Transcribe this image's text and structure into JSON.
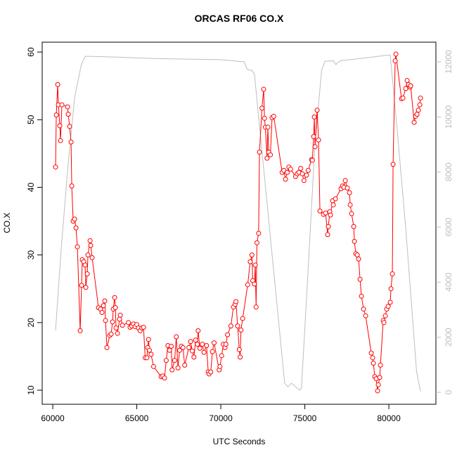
{
  "chart_data": {
    "type": "line",
    "title": "ORCAS RF06 CO.X",
    "x_label": "UTC Seconds",
    "y_label": "CO.X",
    "xlim": [
      59370,
      82800
    ],
    "ylim": [
      7.92,
      61.46
    ],
    "y2lim": [
      -434,
      12715
    ],
    "xticks": [
      60000,
      65000,
      70000,
      75000,
      80000
    ],
    "yticks": [
      10,
      20,
      30,
      40,
      50,
      60
    ],
    "y2ticks": [
      0,
      2000,
      4000,
      6000,
      8000,
      10000,
      12000
    ],
    "y2tick_color": "#bebebe",
    "series": [
      {
        "color": "#ff0000",
        "marker": "circle",
        "axis": "y",
        "x": [
          60167,
          60209,
          60293,
          60335,
          60418,
          60460,
          60544,
          60879,
          60920,
          61004,
          61088,
          61130,
          61213,
          61297,
          61381,
          61464,
          61632,
          61715,
          61757,
          61841,
          61925,
          61966,
          62050,
          62092,
          62218,
          62259,
          62343,
          62720,
          62845,
          62929,
          63012,
          63096,
          63138,
          63222,
          63389,
          63473,
          63556,
          63598,
          63682,
          63724,
          63766,
          63849,
          63975,
          64017,
          64142,
          64500,
          64600,
          64700,
          64800,
          64900,
          65000,
          65100,
          65200,
          65300,
          65400,
          65500,
          65600,
          65650,
          65700,
          65750,
          65850,
          66000,
          66450,
          66550,
          66650,
          66750,
          66850,
          66950,
          67050,
          67100,
          67250,
          67350,
          67450,
          67550,
          67650,
          67750,
          67850,
          68100,
          68200,
          68300,
          68400,
          68500,
          68600,
          68650,
          68750,
          68900,
          69000,
          69150,
          69250,
          69300,
          69400,
          69500,
          69600,
          69900,
          69950,
          70050,
          70150,
          70250,
          70300,
          70400,
          70600,
          70750,
          70850,
          70900,
          71000,
          71100,
          71150,
          71200,
          71300,
          71600,
          71750,
          71850,
          71900,
          72000,
          72050,
          72100,
          72150,
          72250,
          72300,
          72450,
          72550,
          72600,
          72650,
          72750,
          72800,
          72850,
          72950,
          73050,
          73150,
          73650,
          73750,
          73850,
          73950,
          74050,
          74150,
          74450,
          74550,
          74650,
          74750,
          74850,
          74950,
          75100,
          75200,
          75400,
          75450,
          75523,
          75564,
          75606,
          75732,
          75815,
          75899,
          76108,
          76234,
          76359,
          76401,
          76485,
          76527,
          76652,
          76694,
          76820,
          77154,
          77238,
          77322,
          77406,
          77532,
          77657,
          77699,
          77783,
          77908,
          77950,
          78033,
          78117,
          78201,
          78285,
          78369,
          78494,
          78619,
          78953,
          79037,
          79079,
          79163,
          79246,
          79330,
          79372,
          79456,
          79498,
          79665,
          79707,
          79791,
          79874,
          79958,
          80083,
          80125,
          80209,
          80251,
          80376,
          80418,
          80753,
          80837,
          81004,
          81088,
          81172,
          81255,
          81297,
          81506,
          81590,
          81674,
          81757,
          81841,
          81883
        ],
        "values": [
          43,
          50.7,
          55.2,
          52.2,
          49.1,
          46.9,
          52.2,
          51.9,
          50.8,
          49,
          46.7,
          40.2,
          35,
          35.3,
          34,
          31.2,
          18.8,
          25.5,
          29.3,
          29,
          28.5,
          25.2,
          27.2,
          30,
          32.1,
          31.4,
          29.6,
          22.2,
          22,
          21.5,
          22.5,
          23.2,
          20.3,
          16.3,
          18.1,
          18.3,
          20.1,
          22,
          23.7,
          22.2,
          19.2,
          18.4,
          20.5,
          21.1,
          19.6,
          20,
          19.3,
          19.5,
          19.8,
          19.4,
          19.7,
          19.2,
          18.8,
          19.2,
          19.3,
          14.8,
          14.8,
          16.3,
          17.5,
          15.9,
          15.3,
          13.5,
          12,
          12.1,
          11.8,
          14.4,
          16.6,
          15.9,
          16.5,
          13,
          14.4,
          17.9,
          13.3,
          15.9,
          16.5,
          16.3,
          13.7,
          16.3,
          17.2,
          15.8,
          14.9,
          17.4,
          16.8,
          18.8,
          16.2,
          16.8,
          15.6,
          16.6,
          12.7,
          12.4,
          12.7,
          15.7,
          17,
          13,
          13.5,
          15.1,
          16.8,
          16.3,
          16.8,
          18.2,
          19.5,
          22.3,
          22.7,
          23.1,
          19.5,
          16,
          14.9,
          18.9,
          20.6,
          25.6,
          29,
          30,
          26.2,
          25.7,
          28.5,
          22.3,
          31.8,
          33.2,
          45.2,
          51.7,
          54.5,
          50.2,
          48.9,
          44.3,
          48.9,
          45.2,
          44.8,
          50.3,
          50.5,
          42.2,
          42.5,
          41.2,
          42.2,
          43,
          42.7,
          41.6,
          42,
          42.2,
          42.8,
          42,
          41,
          41.8,
          42.5,
          44.1,
          44,
          47.5,
          50.4,
          46,
          51.4,
          47,
          36.5,
          36,
          36.2,
          33,
          34.2,
          36.4,
          35.9,
          38,
          37.4,
          38.3,
          39.8,
          40.2,
          40,
          41,
          39.9,
          39.2,
          37.4,
          36.1,
          34.2,
          32,
          30.2,
          30,
          29.4,
          26.4,
          23.9,
          22,
          21,
          15.5,
          14.8,
          14,
          12,
          11.7,
          9.9,
          10.8,
          11.9,
          13.7,
          20.3,
          20,
          21,
          22,
          22.4,
          23,
          25,
          27.2,
          43.4,
          58.7,
          59.7,
          53.1,
          53.2,
          54.6,
          55.8,
          55.2,
          54.8,
          55,
          49.6,
          50.5,
          50.8,
          51.4,
          52.2,
          53.2
        ]
      },
      {
        "color": "#bebebe",
        "axis": "y2",
        "x": [
          60167,
          60500,
          60900,
          61300,
          61700,
          61925,
          62200,
          64000,
          66000,
          68000,
          70000,
          71400,
          71550,
          71700,
          71850,
          72000,
          73800,
          74000,
          74200,
          74450,
          74700,
          74800,
          75200,
          75600,
          76000,
          76200,
          76700,
          76850,
          77000,
          77200,
          78000,
          80000,
          80080,
          80500,
          81000,
          81650,
          81883
        ],
        "values": [
          2250,
          5200,
          8200,
          10700,
          11900,
          12200,
          12200,
          12170,
          12120,
          12100,
          12080,
          12000,
          11750,
          11700,
          11690,
          11560,
          330,
          200,
          330,
          200,
          80,
          150,
          4500,
          9000,
          11700,
          12020,
          12040,
          11900,
          12000,
          12050,
          12100,
          12250,
          12250,
          9500,
          6000,
          750,
          30
        ]
      }
    ]
  }
}
